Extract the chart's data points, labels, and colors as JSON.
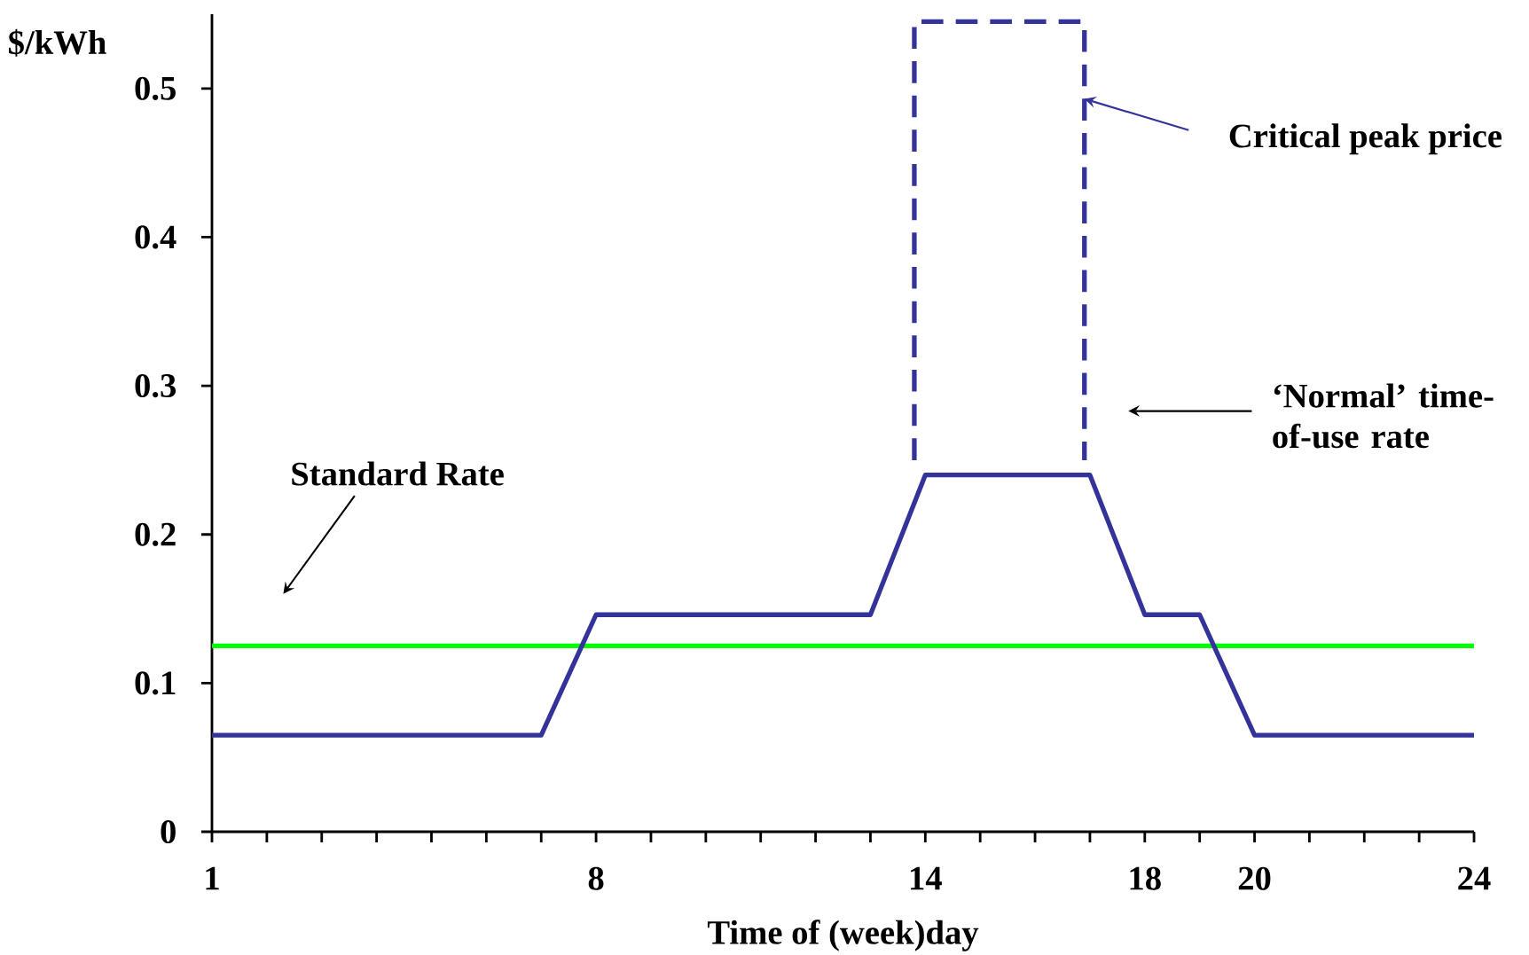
{
  "chart_data": {
    "type": "line",
    "xlabel": "Time of (week)day",
    "ylabel": "$/kWh",
    "xlim": [
      1,
      24
    ],
    "ylim": [
      0,
      0.55
    ],
    "xticks": [
      1,
      {
        "value": 2,
        "label": null
      },
      {
        "value": 3,
        "label": null
      },
      {
        "value": 4,
        "label": null
      },
      {
        "value": 5,
        "label": null
      },
      {
        "value": 6,
        "label": null
      },
      {
        "value": 7,
        "label": null
      },
      8,
      {
        "value": 9,
        "label": null
      },
      {
        "value": 10,
        "label": null
      },
      {
        "value": 11,
        "label": null
      },
      {
        "value": 12,
        "label": null
      },
      {
        "value": 13,
        "label": null
      },
      14,
      {
        "value": 15,
        "label": null
      },
      {
        "value": 16,
        "label": null
      },
      {
        "value": 17,
        "label": null
      },
      18,
      {
        "value": 19,
        "label": null
      },
      20,
      {
        "value": 21,
        "label": null
      },
      {
        "value": 22,
        "label": null
      },
      {
        "value": 23,
        "label": null
      },
      24
    ],
    "yticks": [
      0,
      0.1,
      0.2,
      0.3,
      0.4,
      0.5
    ],
    "series": [
      {
        "color": "#00ff00",
        "x": [
          1,
          24
        ],
        "values": [
          0.125,
          0.125
        ]
      },
      {
        "color": "#333399",
        "x": [
          1,
          7,
          8,
          13,
          14,
          17,
          18,
          19,
          20,
          24
        ],
        "values": [
          0.065,
          0.065,
          0.146,
          0.146,
          0.24,
          0.24,
          0.146,
          0.146,
          0.065,
          0.065
        ]
      },
      {
        "color": "#333399",
        "line_style": "dashed",
        "x": [
          13.8,
          13.8,
          16.9,
          16.9
        ],
        "values": [
          0.25,
          0.545,
          0.545,
          0.25
        ]
      }
    ],
    "annotations": [
      "Standard Rate",
      {
        "text": "Critical peak price",
        "x": 16.9,
        "y": 0.493
      },
      "‘Normal’ time-of-use rate"
    ]
  }
}
